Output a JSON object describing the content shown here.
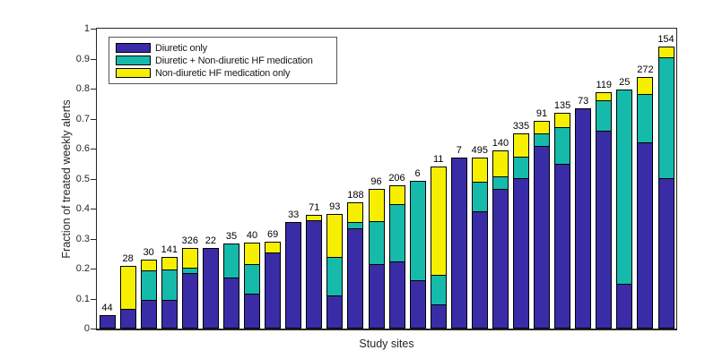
{
  "figure": {
    "background": "#ffffff",
    "axis_color": "#262626"
  },
  "chart_data": {
    "type": "bar",
    "stacked": true,
    "title": "",
    "xlabel": "Study sites",
    "ylabel": "Fraction of treated weekly alerts",
    "ylim": [
      0,
      1
    ],
    "yticks": [
      0,
      0.1,
      0.2,
      0.3,
      0.4,
      0.5,
      0.6,
      0.7,
      0.8,
      0.9,
      1
    ],
    "ytick_labels": [
      "0",
      "0.1",
      "0.2",
      "0.3",
      "0.4",
      "0.5",
      "0.6",
      "0.7",
      "0.8",
      "0.9",
      "1"
    ],
    "xtick_labels": [],
    "grid": false,
    "bar_edge_color": "#000000",
    "legend_position": "top-left-inside",
    "legend": [
      {
        "label": "Diuretic only",
        "color": "#3A2CA6"
      },
      {
        "label": "Diuretic + Non-diuretic HF medication",
        "color": "#16BAAA"
      },
      {
        "label": "Non-diuretic HF medication only",
        "color": "#F6F000"
      }
    ],
    "series_keys": [
      "diuretic_only",
      "diuretic_plus_nondiuretic_hf",
      "nondiuretic_hf_only"
    ],
    "bars": [
      {
        "count_label": "44",
        "segments": [
          0.045,
          0,
          0
        ]
      },
      {
        "count_label": "28",
        "segments": [
          0.065,
          0,
          0.145
        ]
      },
      {
        "count_label": "30",
        "segments": [
          0.095,
          0.1,
          0.04
        ]
      },
      {
        "count_label": "141",
        "segments": [
          0.095,
          0.105,
          0.045
        ]
      },
      {
        "count_label": "326",
        "segments": [
          0.185,
          0.02,
          0.07
        ]
      },
      {
        "count_label": "22",
        "segments": [
          0.27,
          0,
          0
        ]
      },
      {
        "count_label": "35",
        "segments": [
          0.17,
          0.115,
          0
        ]
      },
      {
        "count_label": "40",
        "segments": [
          0.115,
          0.1,
          0.075
        ]
      },
      {
        "count_label": "69",
        "segments": [
          0.255,
          0,
          0.04
        ]
      },
      {
        "count_label": "33",
        "segments": [
          0.355,
          0,
          0
        ]
      },
      {
        "count_label": "71",
        "segments": [
          0.36,
          0,
          0.02
        ]
      },
      {
        "count_label": "93",
        "segments": [
          0.11,
          0.13,
          0.145
        ]
      },
      {
        "count_label": "188",
        "segments": [
          0.335,
          0.025,
          0.07
        ]
      },
      {
        "count_label": "96",
        "segments": [
          0.215,
          0.145,
          0.11
        ]
      },
      {
        "count_label": "206",
        "segments": [
          0.225,
          0.195,
          0.065
        ]
      },
      {
        "count_label": "6",
        "segments": [
          0.16,
          0.335,
          0
        ]
      },
      {
        "count_label": "11",
        "segments": [
          0.08,
          0.1,
          0.365
        ]
      },
      {
        "count_label": "7",
        "segments": [
          0.57,
          0,
          0
        ]
      },
      {
        "count_label": "495",
        "segments": [
          0.39,
          0.1,
          0.085
        ]
      },
      {
        "count_label": "140",
        "segments": [
          0.465,
          0.045,
          0.09
        ]
      },
      {
        "count_label": "335",
        "segments": [
          0.5,
          0.075,
          0.08
        ]
      },
      {
        "count_label": "91",
        "segments": [
          0.61,
          0.045,
          0.045
        ]
      },
      {
        "count_label": "135",
        "segments": [
          0.55,
          0.125,
          0.05
        ]
      },
      {
        "count_label": "73",
        "segments": [
          0.735,
          0,
          0
        ]
      },
      {
        "count_label": "119",
        "segments": [
          0.66,
          0.105,
          0.03
        ]
      },
      {
        "count_label": "25",
        "segments": [
          0.15,
          0.65,
          0
        ]
      },
      {
        "count_label": "272",
        "segments": [
          0.62,
          0.165,
          0.06
        ]
      },
      {
        "count_label": "154",
        "segments": [
          0.5,
          0.405,
          0.04
        ]
      }
    ]
  }
}
